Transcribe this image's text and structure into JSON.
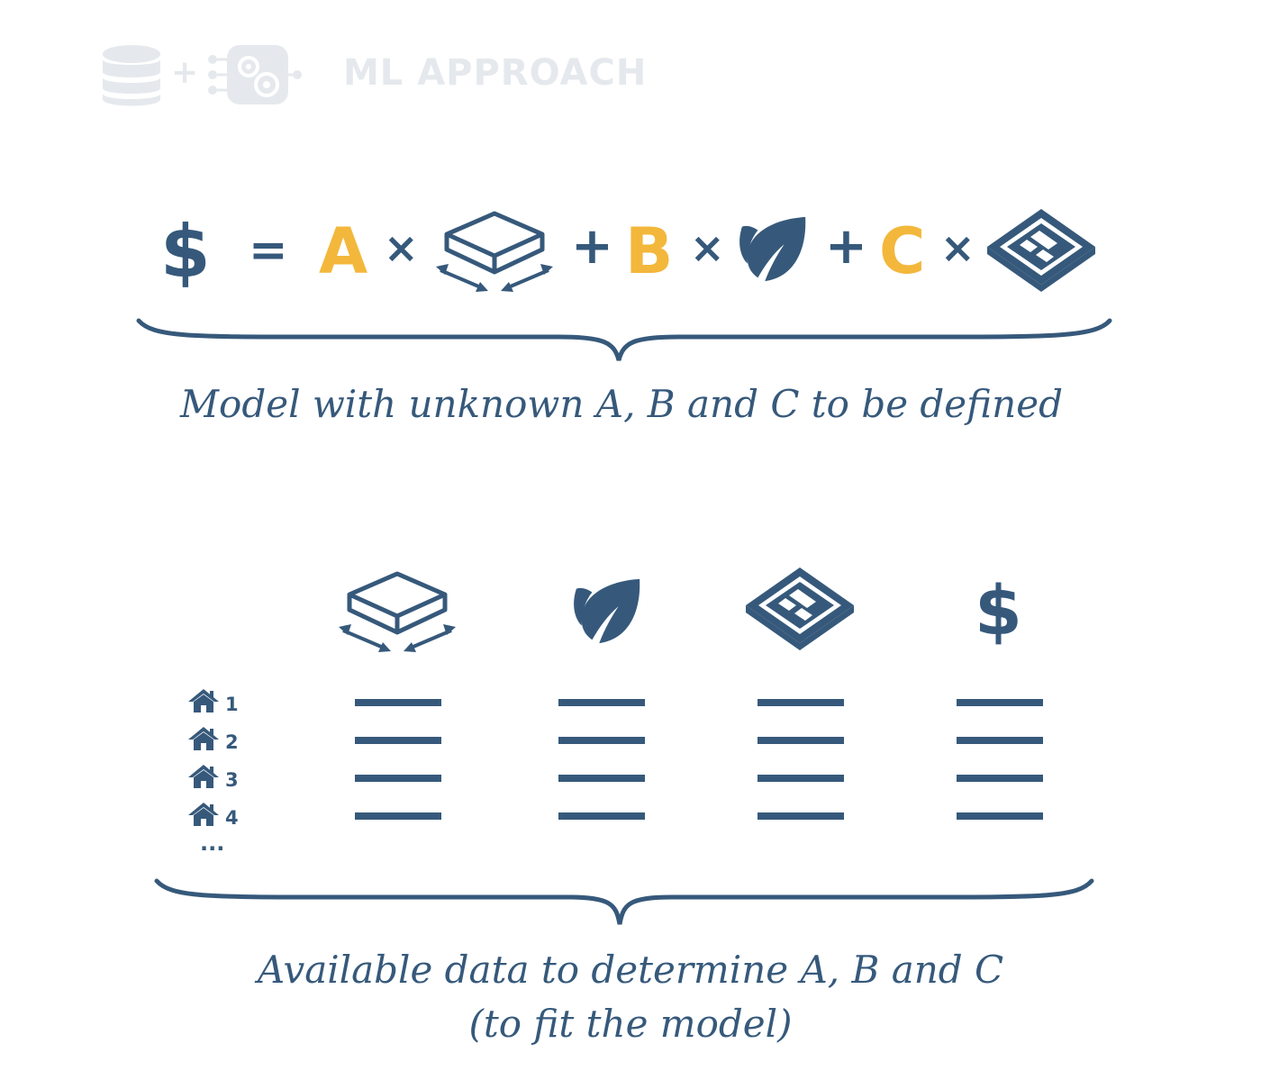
{
  "header": {
    "title": "ML APPROACH",
    "plus": "+",
    "icons": [
      "database-icon",
      "machine-learning-gears-icon"
    ]
  },
  "equation": {
    "result_symbol": "$",
    "equals": "=",
    "plus": "+",
    "times": "×",
    "terms": [
      {
        "coefficient": "A",
        "feature_icon": "area-icon"
      },
      {
        "coefficient": "B",
        "feature_icon": "leaf-icon"
      },
      {
        "coefficient": "C",
        "feature_icon": "floor-plan-icon"
      }
    ],
    "caption": "Model with unknown A, B and C to be defined"
  },
  "data_table": {
    "columns": [
      {
        "icon": "area-icon"
      },
      {
        "icon": "leaf-icon"
      },
      {
        "icon": "floor-plan-icon"
      },
      {
        "icon": "dollar-icon",
        "symbol": "$"
      }
    ],
    "rows": [
      {
        "index": "1",
        "icon": "house-icon"
      },
      {
        "index": "2",
        "icon": "house-icon"
      },
      {
        "index": "3",
        "icon": "house-icon"
      },
      {
        "index": "4",
        "icon": "house-icon"
      }
    ],
    "more_rows": "...",
    "caption_line1": "Available data to determine A, B and C",
    "caption_line2": "(to fit the model)"
  },
  "colors": {
    "primary": "#36597b",
    "coefficient": "#f3b73b",
    "header_faded": "#e5e9ed"
  }
}
